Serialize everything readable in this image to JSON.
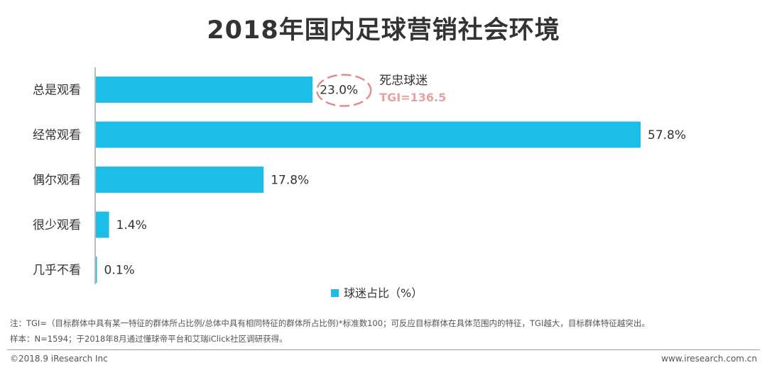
{
  "title": "2018年国内足球营销社会环境",
  "chart_data": {
    "type": "bar",
    "orientation": "horizontal",
    "categories": [
      "总是观看",
      "经常观看",
      "偶尔观看",
      "很少观看",
      "几乎不看"
    ],
    "values": [
      23.0,
      57.8,
      17.8,
      1.4,
      0.1
    ],
    "value_labels": [
      "23.0%",
      "57.8%",
      "17.8%",
      "1.4%",
      "0.1%"
    ],
    "series_name": "球迷占比（%）",
    "xlim": [
      0,
      57.8
    ],
    "bar_color": "#1cbde6",
    "annotation": {
      "category": "总是观看",
      "label": "死忠球迷",
      "sublabel": "TGI=136.5",
      "sublabel_color": "#e8a0a0",
      "circle_color": "#e38c8c"
    }
  },
  "notes": {
    "line1": "注：TGI=（目标群体中具有某一特征的群体所占比例/总体中具有相同特征的群体所占比例)*标准数100；可反应目标群体在具体范围内的特征，TGI越大，目标群体特征越突出。",
    "line2": "样本：N=1594；于2018年8月通过懂球帝平台和艾瑞iClick社区调研获得。"
  },
  "footer": {
    "copyright": "©2018.9 iResearch Inc",
    "site": "www.iresearch.com.cn"
  }
}
